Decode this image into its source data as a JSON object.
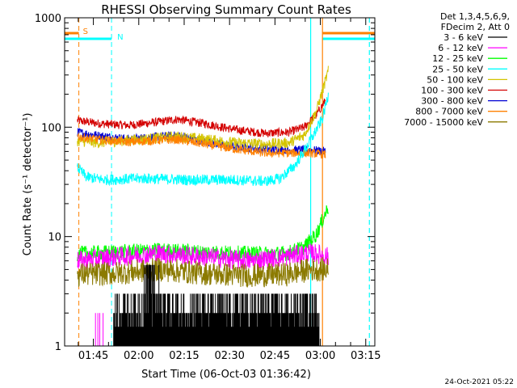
{
  "chart_data": {
    "type": "line",
    "title": "RHESSI Observing Summary Count Rates",
    "xlabel": "Start Time (06-Oct-03 01:36:42)",
    "ylabel": "Count Rate (s⁻¹ detector⁻¹)",
    "yscale": "log",
    "ylim": [
      1,
      1000
    ],
    "xlim_minutes": [
      -1.2,
      101.3
    ],
    "x_ticks": [
      {
        "label": "01:45",
        "minutes": 8.3
      },
      {
        "label": "02:00",
        "minutes": 23.3
      },
      {
        "label": "02:15",
        "minutes": 38.3
      },
      {
        "label": "02:30",
        "minutes": 53.3
      },
      {
        "label": "02:45",
        "minutes": 68.3
      },
      {
        "label": "03:00",
        "minutes": 83.3
      },
      {
        "label": "03:15",
        "minutes": 98.3
      }
    ],
    "y_ticks": [
      {
        "label": "1",
        "value": 1
      },
      {
        "label": "10",
        "value": 10
      },
      {
        "label": "100",
        "value": 100
      },
      {
        "label": "1000",
        "value": 1000
      }
    ],
    "legend": {
      "placement": "top-right outside",
      "header": [
        "Det 1,3,4,5,6,9,",
        "FDecim 2, Att 0"
      ],
      "entries": [
        {
          "label": "3 - 6 keV",
          "color": "#000000"
        },
        {
          "label": "6 - 12 keV",
          "color": "#ff00ff"
        },
        {
          "label": "12 - 25 keV",
          "color": "#00ff00"
        },
        {
          "label": "25 - 50 keV",
          "color": "#00ffff"
        },
        {
          "label": "50 - 100 keV",
          "color": "#d4c400"
        },
        {
          "label": "100 - 300 keV",
          "color": "#d40000"
        },
        {
          "label": "300 - 800 keV",
          "color": "#0000d4"
        },
        {
          "label": "800 - 7000 keV",
          "color": "#ff8000"
        },
        {
          "label": "7000 - 15000 keV",
          "color": "#8b7a00"
        }
      ]
    },
    "series": [
      {
        "name": "100 - 300 keV",
        "color": "#d40000",
        "jitter": 0.04,
        "points": [
          [
            3,
            115
          ],
          [
            10,
            108
          ],
          [
            20,
            104
          ],
          [
            30,
            112
          ],
          [
            36,
            118
          ],
          [
            45,
            108
          ],
          [
            55,
            95
          ],
          [
            65,
            88
          ],
          [
            73,
            90
          ],
          [
            78,
            100
          ],
          [
            82,
            130
          ],
          [
            85,
            175
          ]
        ]
      },
      {
        "name": "300 - 800 keV",
        "color": "#0000d4",
        "jitter": 0.04,
        "points": [
          [
            3,
            90
          ],
          [
            10,
            84
          ],
          [
            20,
            78
          ],
          [
            30,
            82
          ],
          [
            36,
            84
          ],
          [
            45,
            74
          ],
          [
            55,
            66
          ],
          [
            65,
            63
          ],
          [
            73,
            62
          ],
          [
            80,
            62
          ],
          [
            85,
            60
          ]
        ]
      },
      {
        "name": "50 - 100 keV",
        "color": "#d4c400",
        "jitter": 0.05,
        "points": [
          [
            3,
            75
          ],
          [
            10,
            72
          ],
          [
            20,
            76
          ],
          [
            30,
            80
          ],
          [
            36,
            82
          ],
          [
            45,
            78
          ],
          [
            55,
            72
          ],
          [
            65,
            70
          ],
          [
            73,
            72
          ],
          [
            78,
            85
          ],
          [
            82,
            140
          ],
          [
            86,
            330
          ]
        ]
      },
      {
        "name": "800 - 7000 keV",
        "color": "#ff8000",
        "jitter": 0.04,
        "points": [
          [
            3,
            82
          ],
          [
            10,
            77
          ],
          [
            20,
            73
          ],
          [
            30,
            76
          ],
          [
            36,
            77
          ],
          [
            45,
            70
          ],
          [
            55,
            63
          ],
          [
            65,
            58
          ],
          [
            73,
            58
          ],
          [
            80,
            58
          ],
          [
            85,
            56
          ]
        ]
      },
      {
        "name": "25 - 50 keV",
        "color": "#00ffff",
        "jitter": 0.05,
        "points": [
          [
            3,
            43
          ],
          [
            6,
            35
          ],
          [
            12,
            33
          ],
          [
            25,
            34
          ],
          [
            40,
            33
          ],
          [
            55,
            33
          ],
          [
            65,
            32
          ],
          [
            70,
            34
          ],
          [
            75,
            45
          ],
          [
            80,
            75
          ],
          [
            84,
            120
          ],
          [
            86,
            200
          ]
        ]
      },
      {
        "name": "12 - 25 keV",
        "color": "#00ff00",
        "jitter": 0.07,
        "points": [
          [
            3,
            7
          ],
          [
            15,
            7.2
          ],
          [
            30,
            7.5
          ],
          [
            45,
            7.2
          ],
          [
            60,
            7
          ],
          [
            72,
            7
          ],
          [
            78,
            8
          ],
          [
            82,
            10.5
          ],
          [
            86,
            19
          ]
        ]
      },
      {
        "name": "6 - 12 keV",
        "color": "#ff00ff",
        "jitter": 0.09,
        "points": [
          [
            3,
            6
          ],
          [
            15,
            6.5
          ],
          [
            30,
            7
          ],
          [
            45,
            6.5
          ],
          [
            60,
            6
          ],
          [
            72,
            6.5
          ],
          [
            78,
            7
          ],
          [
            82,
            7
          ],
          [
            86,
            6.5
          ]
        ]
      },
      {
        "name": "7000 - 15000 keV",
        "color": "#8b7a00",
        "jitter": 0.11,
        "points": [
          [
            3,
            4.5
          ],
          [
            15,
            4.6
          ],
          [
            30,
            5
          ],
          [
            45,
            4.6
          ],
          [
            60,
            4.4
          ],
          [
            72,
            4.5
          ],
          [
            80,
            5
          ],
          [
            86,
            5
          ]
        ]
      }
    ],
    "attenuator_bars": [
      {
        "label": "S",
        "color": "#ff8000",
        "x_start_minutes": -1.2,
        "x_end_minutes": 3.5,
        "vline_minutes": 3.5
      },
      {
        "label": "N",
        "color": "#00ffff",
        "x_start_minutes": -1.2,
        "x_end_minutes": 14.3,
        "vline_minutes": 14.3
      }
    ],
    "vertical_markers": [
      {
        "minutes": 80.1,
        "color": "#00ffff",
        "style": "solid"
      },
      {
        "minutes": 84.0,
        "color": "#ff8000",
        "style": "solid"
      },
      {
        "minutes": 99.5,
        "color": "#00ffff",
        "style": "dashed"
      }
    ],
    "right_bars": [
      {
        "color": "#ff8000",
        "x_start_minutes": 84.0,
        "x_end_minutes": 101.3
      },
      {
        "color": "#00ffff",
        "x_start_minutes": 84.0,
        "x_end_minutes": 101.3
      }
    ]
  },
  "footer": {
    "timestamp": "24-Oct-2021 05:22"
  }
}
